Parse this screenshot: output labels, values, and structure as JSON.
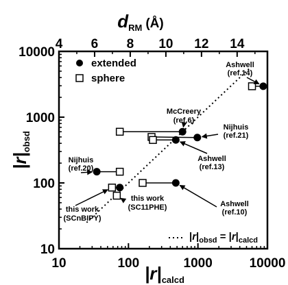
{
  "chart_data": {
    "type": "scatter",
    "xlabel": "|r|",
    "xlabel_sub": "calcd",
    "ylabel": "|r|",
    "ylabel_sub": "obsd",
    "top_axis_label": "d",
    "top_axis_sub": "RM",
    "top_axis_unit": "(Å)",
    "x_scale": "log",
    "y_scale": "log",
    "xlim": [
      10,
      10000
    ],
    "ylim": [
      10,
      10000
    ],
    "x_ticks": [
      "10",
      "100",
      "1000",
      "10000"
    ],
    "y_ticks": [
      "10",
      "100",
      "1000",
      "10000"
    ],
    "top_axis_ticks": [
      "4",
      "6",
      "8",
      "10",
      "12",
      "14"
    ],
    "legend": {
      "placement": "top-left",
      "extended_label": "extended",
      "sphere_label": "sphere",
      "line_label": "|r|obsd = |r|calcd",
      "line_parts": [
        "|",
        "r",
        "|",
        "obsd",
        " = |",
        "r",
        "|",
        "calcd"
      ]
    },
    "series": [
      {
        "name": "extended",
        "marker": "filled-circle",
        "points": [
          {
            "x": 35,
            "y": 148
          },
          {
            "x": 75,
            "y": 85
          },
          {
            "x": 480,
            "y": 100
          },
          {
            "x": 480,
            "y": 450
          },
          {
            "x": 600,
            "y": 600
          },
          {
            "x": 980,
            "y": 490
          },
          {
            "x": 8700,
            "y": 2950
          }
        ]
      },
      {
        "name": "sphere",
        "marker": "open-square",
        "points": [
          {
            "x": 75,
            "y": 148
          },
          {
            "x": 58,
            "y": 85
          },
          {
            "x": 68,
            "y": 64
          },
          {
            "x": 160,
            "y": 100
          },
          {
            "x": 75,
            "y": 600
          },
          {
            "x": 215,
            "y": 500
          },
          {
            "x": 225,
            "y": 450
          },
          {
            "x": 6000,
            "y": 2950
          }
        ]
      }
    ],
    "connectors": [
      {
        "x1": 35,
        "y1": 148,
        "x2": 75,
        "y2": 148
      },
      {
        "x1": 58,
        "y1": 85,
        "x2": 75,
        "y2": 85
      },
      {
        "x1": 160,
        "y1": 100,
        "x2": 480,
        "y2": 100
      },
      {
        "x1": 75,
        "y1": 600,
        "x2": 600,
        "y2": 600
      },
      {
        "x1": 215,
        "y1": 500,
        "x2": 980,
        "y2": 490
      },
      {
        "x1": 225,
        "y1": 450,
        "x2": 480,
        "y2": 450
      },
      {
        "x1": 6000,
        "y1": 2950,
        "x2": 8700,
        "y2": 2950
      }
    ],
    "annotations": [
      {
        "id": "nijhuis-20",
        "lines": [
          "Nijhuis",
          "(ref.20)"
        ],
        "target": [
          35,
          148
        ]
      },
      {
        "id": "mccreery-6",
        "lines": [
          "McCreery",
          "(ref.6)"
        ],
        "target": [
          600,
          600
        ]
      },
      {
        "id": "nijhuis-21",
        "lines": [
          "Nijhuis",
          "(ref.21)"
        ],
        "target": [
          980,
          490
        ]
      },
      {
        "id": "ashwell-13",
        "lines": [
          "Ashwell",
          "(ref.13)"
        ],
        "target": [
          480,
          450
        ]
      },
      {
        "id": "ashwell-14",
        "lines": [
          "Ashwell",
          "(ref.14)"
        ],
        "target": [
          8700,
          2950
        ]
      },
      {
        "id": "ashwell-10",
        "lines": [
          "Ashwell",
          "(ref.10)"
        ],
        "target": [
          480,
          100
        ]
      },
      {
        "id": "this-work-sc11phe",
        "lines": [
          "this work",
          "(SC11PHE)"
        ],
        "target": [
          68,
          64
        ]
      },
      {
        "id": "this-work-scnbipy",
        "lines": [
          "this work",
          "(SCnBIPY)"
        ],
        "target": [
          58,
          85
        ]
      }
    ]
  }
}
